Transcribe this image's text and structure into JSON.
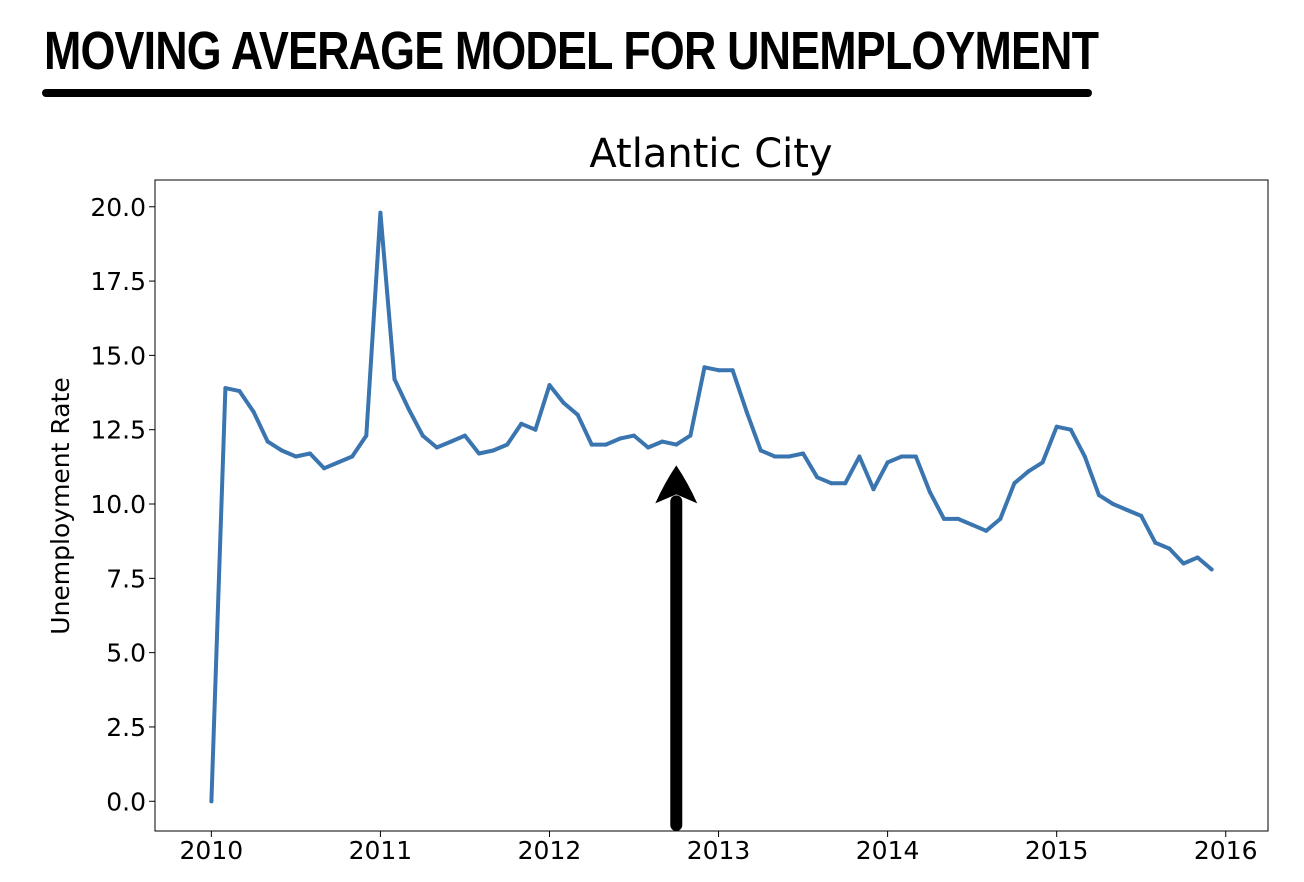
{
  "page": {
    "heading": "MOVING AVERAGE MODEL FOR UNEMPLOYMENT"
  },
  "chart_data": {
    "type": "line",
    "title": "Atlantic City",
    "xlabel": "",
    "ylabel": "Unemployment Rate",
    "x_ticks": [
      "2010",
      "2011",
      "2012",
      "2013",
      "2014",
      "2015",
      "2016"
    ],
    "y_ticks": [
      "0.0",
      "2.5",
      "5.0",
      "7.5",
      "10.0",
      "12.5",
      "15.0",
      "17.5",
      "20.0"
    ],
    "xlim": [
      "2009-09",
      "2016-04"
    ],
    "ylim": [
      -1.0,
      20.9
    ],
    "grid": false,
    "line_color": "#3a75b0",
    "annotation": {
      "type": "arrow",
      "direction": "up",
      "x": "2012-10",
      "y_from": -0.8,
      "y_to": 11.3,
      "color": "#000000"
    },
    "series": [
      {
        "x": [
          "2010-01",
          "2010-02",
          "2010-03",
          "2010-04",
          "2010-05",
          "2010-06",
          "2010-07",
          "2010-08",
          "2010-09",
          "2010-10",
          "2010-11",
          "2010-12",
          "2011-01",
          "2011-02",
          "2011-03",
          "2011-04",
          "2011-05",
          "2011-06",
          "2011-07",
          "2011-08",
          "2011-09",
          "2011-10",
          "2011-11",
          "2011-12",
          "2012-01",
          "2012-02",
          "2012-03",
          "2012-04",
          "2012-05",
          "2012-06",
          "2012-07",
          "2012-08",
          "2012-09",
          "2012-10",
          "2012-11",
          "2012-12",
          "2013-01",
          "2013-02",
          "2013-03",
          "2013-04",
          "2013-05",
          "2013-06",
          "2013-07",
          "2013-08",
          "2013-09",
          "2013-10",
          "2013-11",
          "2013-12",
          "2014-01",
          "2014-02",
          "2014-03",
          "2014-04",
          "2014-05",
          "2014-06",
          "2014-07",
          "2014-08",
          "2014-09",
          "2014-10",
          "2014-11",
          "2014-12",
          "2015-01",
          "2015-02",
          "2015-03",
          "2015-04",
          "2015-05",
          "2015-06",
          "2015-07",
          "2015-08",
          "2015-09",
          "2015-10",
          "2015-11",
          "2015-12"
        ],
        "values": [
          0.0,
          13.9,
          13.8,
          13.1,
          12.1,
          11.8,
          11.6,
          11.7,
          11.2,
          11.4,
          11.6,
          12.3,
          19.8,
          14.2,
          13.2,
          12.3,
          11.9,
          12.1,
          12.3,
          11.7,
          11.8,
          12.0,
          12.7,
          12.5,
          14.0,
          13.4,
          13.0,
          12.0,
          12.0,
          12.2,
          12.3,
          11.9,
          12.1,
          12.0,
          12.3,
          14.6,
          14.5,
          14.5,
          13.1,
          11.8,
          11.6,
          11.6,
          11.7,
          10.9,
          10.7,
          10.7,
          11.6,
          10.5,
          11.4,
          11.6,
          11.6,
          10.4,
          9.5,
          9.5,
          9.3,
          9.1,
          9.5,
          10.7,
          11.1,
          11.4,
          12.6,
          12.5,
          11.6,
          10.3,
          10.0,
          9.8,
          9.6,
          8.7,
          8.5,
          8.0,
          8.2,
          7.8
        ]
      }
    ]
  }
}
